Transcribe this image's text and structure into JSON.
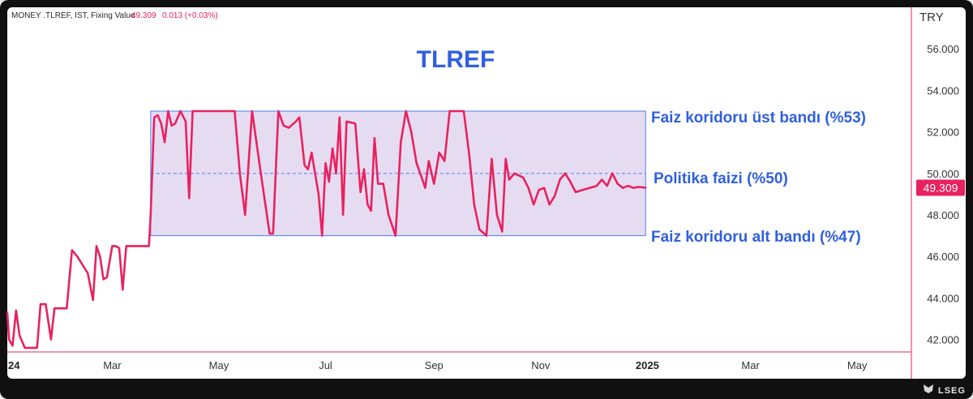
{
  "header": {
    "symbol_text": "MONEY .TLREF, IST, Fixing Value",
    "last_value": "49.309",
    "change": "0.013 (+0.03%)"
  },
  "currency_label": "TRY",
  "footer": {
    "brand": "LSEG"
  },
  "colors": {
    "line": "#e8225f",
    "band_fill": "#e6dcf2",
    "band_border": "#4f7df0",
    "label_blue": "#3060e0",
    "price_tag_bg": "#e8225f"
  },
  "annotations": {
    "upper_band": "Faiz koridoru üst bandı (%53)",
    "policy_rate": "Politika faizi (%50)",
    "lower_band": "Faiz koridoru alt bandı (%47)"
  },
  "chart_data": {
    "type": "line",
    "title": "TLREF",
    "ylim": [
      41.4,
      58.0
    ],
    "y_ticks": [
      "42.000",
      "44.000",
      "46.000",
      "48.000",
      "50.000",
      "52.000",
      "54.000",
      "56.000"
    ],
    "y_tick_values": [
      42,
      44,
      46,
      48,
      50,
      52,
      54,
      56
    ],
    "x_ticks": [
      "24",
      "Mar",
      "May",
      "Jul",
      "Sep",
      "Nov",
      "2025",
      "Mar",
      "May"
    ],
    "x_tick_values": [
      "2024-01-01",
      "2024-03-01",
      "2024-05-01",
      "2024-07-01",
      "2024-09-01",
      "2024-11-01",
      "2025-01-01",
      "2025-03-01",
      "2025-05-01"
    ],
    "x_tick_bold": [
      true,
      false,
      false,
      false,
      false,
      false,
      true,
      false,
      false
    ],
    "xlim": [
      "2024-01-01",
      "2025-06-01"
    ],
    "last_value": 49.309,
    "bands": {
      "upper": 53,
      "policy": 50,
      "lower": 47,
      "band_start": "2024-03-23",
      "band_end": "2024-12-31"
    },
    "series": [
      {
        "values": [
          [
            "2024-01-01",
            43.3
          ],
          [
            "2024-01-02",
            42.0
          ],
          [
            "2024-01-04",
            41.7
          ],
          [
            "2024-01-06",
            43.4
          ],
          [
            "2024-01-08",
            42.2
          ],
          [
            "2024-01-11",
            41.6
          ],
          [
            "2024-01-18",
            41.6
          ],
          [
            "2024-01-20",
            43.7
          ],
          [
            "2024-01-23",
            43.7
          ],
          [
            "2024-01-26",
            42.0
          ],
          [
            "2024-01-28",
            43.5
          ],
          [
            "2024-02-04",
            43.5
          ],
          [
            "2024-02-07",
            46.3
          ],
          [
            "2024-02-10",
            46.0
          ],
          [
            "2024-02-13",
            45.6
          ],
          [
            "2024-02-16",
            45.2
          ],
          [
            "2024-02-19",
            43.9
          ],
          [
            "2024-02-21",
            46.5
          ],
          [
            "2024-02-23",
            46.0
          ],
          [
            "2024-02-25",
            44.9
          ],
          [
            "2024-02-27",
            45.0
          ],
          [
            "2024-03-01",
            46.5
          ],
          [
            "2024-03-03",
            46.5
          ],
          [
            "2024-03-05",
            46.4
          ],
          [
            "2024-03-07",
            44.4
          ],
          [
            "2024-03-09",
            46.5
          ],
          [
            "2024-03-22",
            46.5
          ],
          [
            "2024-03-23",
            48.0
          ],
          [
            "2024-03-25",
            52.7
          ],
          [
            "2024-03-27",
            52.8
          ],
          [
            "2024-03-29",
            52.4
          ],
          [
            "2024-03-31",
            51.5
          ],
          [
            "2024-04-02",
            53.0
          ],
          [
            "2024-04-04",
            52.3
          ],
          [
            "2024-04-06",
            52.4
          ],
          [
            "2024-04-09",
            53.0
          ],
          [
            "2024-04-12",
            52.5
          ],
          [
            "2024-04-14",
            48.8
          ],
          [
            "2024-04-16",
            53.0
          ],
          [
            "2024-05-06",
            53.0
          ],
          [
            "2024-05-10",
            53.0
          ],
          [
            "2024-05-13",
            50.0
          ],
          [
            "2024-05-16",
            48.0
          ],
          [
            "2024-05-20",
            53.0
          ],
          [
            "2024-05-25",
            50.0
          ],
          [
            "2024-05-30",
            47.1
          ],
          [
            "2024-06-01",
            47.1
          ],
          [
            "2024-06-04",
            53.0
          ],
          [
            "2024-06-07",
            52.3
          ],
          [
            "2024-06-10",
            52.2
          ],
          [
            "2024-06-14",
            52.5
          ],
          [
            "2024-06-16",
            52.7
          ],
          [
            "2024-06-19",
            50.4
          ],
          [
            "2024-06-21",
            50.2
          ],
          [
            "2024-06-23",
            51.0
          ],
          [
            "2024-06-25",
            50.0
          ],
          [
            "2024-06-27",
            49.0
          ],
          [
            "2024-06-29",
            47.0
          ],
          [
            "2024-07-01",
            50.5
          ],
          [
            "2024-07-03",
            49.6
          ],
          [
            "2024-07-05",
            51.2
          ],
          [
            "2024-07-07",
            50.0
          ],
          [
            "2024-07-09",
            52.7
          ],
          [
            "2024-07-11",
            48.0
          ],
          [
            "2024-07-13",
            52.5
          ],
          [
            "2024-07-18",
            52.4
          ],
          [
            "2024-07-21",
            49.1
          ],
          [
            "2024-07-23",
            50.2
          ],
          [
            "2024-07-25",
            48.5
          ],
          [
            "2024-07-27",
            48.2
          ],
          [
            "2024-07-29",
            51.7
          ],
          [
            "2024-07-31",
            49.5
          ],
          [
            "2024-08-03",
            49.5
          ],
          [
            "2024-08-06",
            48.0
          ],
          [
            "2024-08-10",
            47.0
          ],
          [
            "2024-08-13",
            51.5
          ],
          [
            "2024-08-16",
            53.0
          ],
          [
            "2024-08-19",
            52.0
          ],
          [
            "2024-08-22",
            50.5
          ],
          [
            "2024-08-25",
            49.8
          ],
          [
            "2024-08-27",
            49.3
          ],
          [
            "2024-08-29",
            50.6
          ],
          [
            "2024-09-01",
            49.5
          ],
          [
            "2024-09-04",
            51.0
          ],
          [
            "2024-09-07",
            50.6
          ],
          [
            "2024-09-10",
            53.0
          ],
          [
            "2024-09-18",
            53.0
          ],
          [
            "2024-09-21",
            51.0
          ],
          [
            "2024-09-24",
            48.5
          ],
          [
            "2024-09-27",
            47.3
          ],
          [
            "2024-10-01",
            47.0
          ],
          [
            "2024-10-04",
            50.7
          ],
          [
            "2024-10-07",
            48.0
          ],
          [
            "2024-10-10",
            47.2
          ],
          [
            "2024-10-12",
            50.7
          ],
          [
            "2024-10-14",
            49.7
          ],
          [
            "2024-10-17",
            50.0
          ],
          [
            "2024-10-22",
            49.8
          ],
          [
            "2024-10-25",
            49.3
          ],
          [
            "2024-10-28",
            48.5
          ],
          [
            "2024-10-31",
            49.2
          ],
          [
            "2024-11-03",
            49.3
          ],
          [
            "2024-11-06",
            48.5
          ],
          [
            "2024-11-09",
            48.9
          ],
          [
            "2024-11-12",
            49.7
          ],
          [
            "2024-11-15",
            50.0
          ],
          [
            "2024-11-18",
            49.6
          ],
          [
            "2024-11-21",
            49.1
          ],
          [
            "2024-11-25",
            49.2
          ],
          [
            "2024-11-29",
            49.3
          ],
          [
            "2024-12-03",
            49.4
          ],
          [
            "2024-12-06",
            49.7
          ],
          [
            "2024-12-09",
            49.4
          ],
          [
            "2024-12-12",
            50.0
          ],
          [
            "2024-12-15",
            49.5
          ],
          [
            "2024-12-18",
            49.3
          ],
          [
            "2024-12-21",
            49.4
          ],
          [
            "2024-12-24",
            49.3
          ],
          [
            "2024-12-27",
            49.35
          ],
          [
            "2024-12-31",
            49.309
          ]
        ]
      }
    ]
  }
}
